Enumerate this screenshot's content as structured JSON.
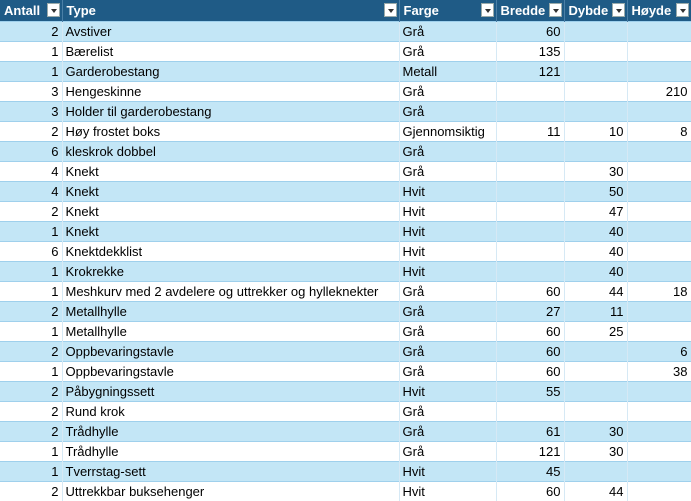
{
  "table": {
    "columns": [
      "Antall",
      "Type",
      "Farge",
      "Bredde",
      "Dybde",
      "Høyde"
    ],
    "rows": [
      [
        2,
        "Avstiver",
        "Grå",
        60,
        null,
        null
      ],
      [
        1,
        "Bærelist",
        "Grå",
        135,
        null,
        null
      ],
      [
        1,
        "Garderobestang",
        "Metall",
        121,
        null,
        null
      ],
      [
        3,
        "Hengeskinne",
        "Grå",
        null,
        null,
        210
      ],
      [
        3,
        "Holder til garderobestang",
        "Grå",
        null,
        null,
        null
      ],
      [
        2,
        "Høy frostet boks",
        "Gjennomsiktig",
        11,
        10,
        8
      ],
      [
        6,
        "kleskrok dobbel",
        "Grå",
        null,
        null,
        null
      ],
      [
        4,
        "Knekt",
        "Grå",
        null,
        30,
        null
      ],
      [
        4,
        "Knekt",
        "Hvit",
        null,
        50,
        null
      ],
      [
        2,
        "Knekt",
        "Hvit",
        null,
        47,
        null
      ],
      [
        1,
        "Knekt",
        "Hvit",
        null,
        40,
        null
      ],
      [
        6,
        "Knektdekklist",
        "Hvit",
        null,
        40,
        null
      ],
      [
        1,
        "Krokrekke",
        "Hvit",
        null,
        40,
        null
      ],
      [
        1,
        "Meshkurv med 2 avdelere og uttrekker og hylleknekter",
        "Grå",
        60,
        44,
        18
      ],
      [
        2,
        "Metallhylle",
        "Grå",
        27,
        11,
        null
      ],
      [
        1,
        "Metallhylle",
        "Grå",
        60,
        25,
        null
      ],
      [
        2,
        "Oppbevaringstavle",
        "Grå",
        60,
        null,
        6
      ],
      [
        1,
        "Oppbevaringstavle",
        "Grå",
        60,
        null,
        38
      ],
      [
        2,
        "Påbygningssett",
        "Hvit",
        55,
        null,
        null
      ],
      [
        2,
        "Rund krok",
        "Grå",
        null,
        null,
        null
      ],
      [
        2,
        "Trådhylle",
        "Grå",
        61,
        30,
        null
      ],
      [
        1,
        "Trådhylle",
        "Grå",
        121,
        30,
        null
      ],
      [
        1,
        "Tverrstag-sett",
        "Hvit",
        45,
        null,
        null
      ],
      [
        2,
        "Uttrekkbar buksehenger",
        "Hvit",
        60,
        44,
        null
      ]
    ]
  }
}
